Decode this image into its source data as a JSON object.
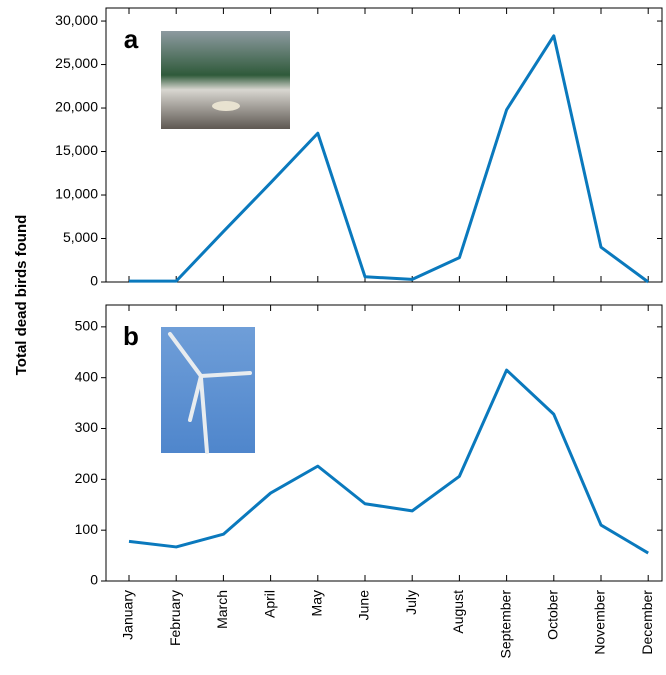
{
  "chart_data": [
    {
      "type": "line",
      "panel_label": "a",
      "ylabel": "Total dead birds found",
      "values": [
        100,
        100,
        5800,
        11400,
        17100,
        600,
        300,
        2800,
        19800,
        28300,
        4000,
        0
      ],
      "color": "#0a79bd",
      "ylim": [
        0,
        31500
      ],
      "yticks": [
        0,
        {
          "value": 5000,
          "label": "5,000"
        },
        {
          "value": 10000,
          "label": "10,000"
        },
        {
          "value": 15000,
          "label": "15,000"
        },
        {
          "value": 20000,
          "label": "20,000"
        },
        {
          "value": 25000,
          "label": "25,000"
        },
        {
          "value": 30000,
          "label": "30,000"
        }
      ]
    },
    {
      "type": "line",
      "panel_label": "b",
      "categories": [
        "January",
        "February",
        "March",
        "April",
        "May",
        "June",
        "July",
        "August",
        "September",
        "October",
        "November",
        "December"
      ],
      "values": [
        78,
        67,
        92,
        173,
        226,
        152,
        138,
        206,
        415,
        328,
        110,
        55
      ],
      "color": "#0a79bd",
      "ylim": [
        0,
        543
      ],
      "yticks": [
        0,
        100,
        200,
        300,
        400,
        500
      ]
    }
  ]
}
